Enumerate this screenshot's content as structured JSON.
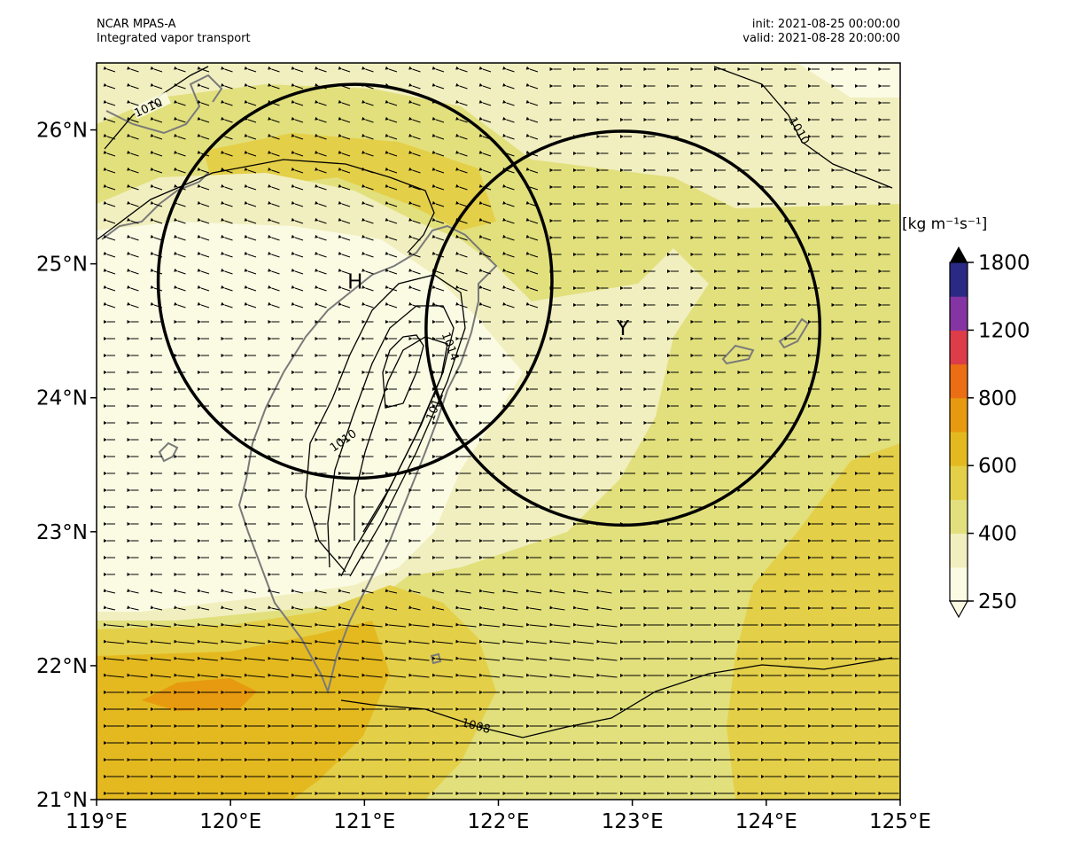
{
  "header": {
    "model": "NCAR MPAS-A",
    "field": "Integrated vapor transport",
    "init": "init: 2021-08-25 00:00:00",
    "valid": "valid: 2021-08-28 20:00:00"
  },
  "map": {
    "lon_range": [
      119,
      125
    ],
    "lat_range": [
      21,
      26.5
    ],
    "x_ticks": [
      "119°E",
      "120°E",
      "121°E",
      "122°E",
      "123°E",
      "124°E",
      "125°E"
    ],
    "y_ticks": [
      "21°N",
      "22°N",
      "23°N",
      "24°N",
      "25°N",
      "26°N"
    ],
    "markers": [
      {
        "label": "H",
        "lon": 120.93,
        "lat": 24.87
      },
      {
        "label": "Y",
        "lon": 122.93,
        "lat": 24.52
      }
    ],
    "circles": [
      {
        "center_lon": 120.93,
        "center_lat": 24.87,
        "radius_deg": 1.47
      },
      {
        "center_lon": 122.93,
        "center_lat": 24.52,
        "radius_deg": 1.47
      }
    ],
    "isobar_labels": [
      "1010",
      "1010",
      "1010",
      "1014",
      "1012",
      "1008"
    ],
    "wind_direction": "westward"
  },
  "colorbar": {
    "unit": "[kg m⁻¹s⁻¹]",
    "tick_labels": [
      "250",
      "400",
      "600",
      "800",
      "1200",
      "1800"
    ],
    "levels": [
      250,
      300,
      400,
      500,
      600,
      700,
      800,
      1000,
      1200,
      1500,
      1800
    ],
    "colors": [
      "#fbfbe4",
      "#f1efbf",
      "#e2e07c",
      "#e4cf48",
      "#e4b91f",
      "#e79a0f",
      "#ec6e14",
      "#dc3d48",
      "#8535a3",
      "#2a2a85"
    ],
    "extend": "both"
  },
  "colors": {
    "frame": "#000000",
    "coast": "#7a7a7a",
    "isobar": "#000000"
  }
}
